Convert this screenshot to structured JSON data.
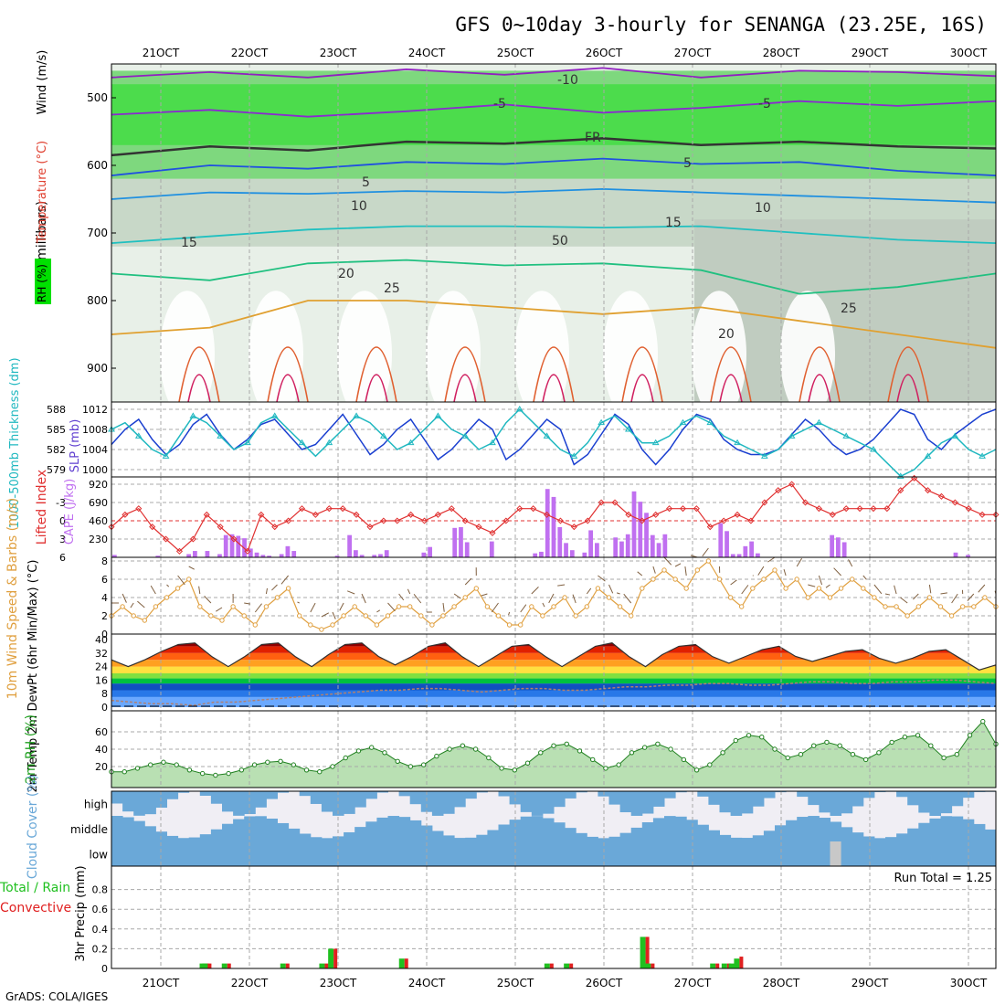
{
  "header": {
    "title": "GFS 0~10day 3-hourly for SENANGA (23.25E, 16S)",
    "credit": "GrADS: COLA/IGES"
  },
  "colors": {
    "grid": "#a8a8a8",
    "rh_green": "#00e000",
    "slp": "#1a3fd0",
    "thickness": "#20b8c0",
    "lifted_index": "#e03030",
    "cape": "#c070f0",
    "wind_speed": "#e0a040",
    "dewpoint": "#7060c0",
    "cloud": "#6aa8d8",
    "rain": "#e02020",
    "total_precip": "#20c020"
  },
  "chart_data": [
    {
      "panel": "upper-air",
      "type": "heatmap",
      "ylabel": "(millibars)",
      "side_labels": [
        "RH (%)",
        "Temperature (°C)",
        "Wind (m/s)"
      ],
      "y_ticks": [
        "500",
        "600",
        "700",
        "800",
        "900"
      ],
      "ylim": [
        450,
        950
      ],
      "x_ticks": [
        "21OCT",
        "22OCT",
        "23OCT",
        "24OCT",
        "25OCT",
        "26OCT",
        "27OCT",
        "28OCT",
        "29OCT",
        "30OCT"
      ],
      "isotherm_labels": [
        "-10",
        "-5",
        "-5",
        "FR",
        "5",
        "5",
        "10",
        "10",
        "15",
        "15",
        "20",
        "20",
        "25",
        "25",
        "50"
      ],
      "isotherms": [
        {
          "name": "-10",
          "color": "#9020c0",
          "values": [
            470,
            462,
            470,
            458,
            466,
            456,
            470,
            460,
            462,
            468
          ]
        },
        {
          "name": "-5",
          "color": "#8a2ad0",
          "values": [
            525,
            518,
            528,
            520,
            510,
            522,
            515,
            505,
            512,
            505
          ]
        },
        {
          "name": "FR",
          "color": "#333333",
          "values": [
            585,
            572,
            578,
            565,
            568,
            560,
            570,
            565,
            572,
            575
          ]
        },
        {
          "name": "5",
          "color": "#2050e0",
          "values": [
            615,
            600,
            605,
            595,
            598,
            590,
            598,
            595,
            608,
            615
          ]
        },
        {
          "name": "10",
          "color": "#2090e0",
          "values": [
            650,
            640,
            642,
            638,
            640,
            635,
            640,
            645,
            650,
            655
          ]
        },
        {
          "name": "15",
          "color": "#20c0c0",
          "values": [
            715,
            705,
            695,
            690,
            690,
            692,
            690,
            700,
            710,
            715
          ]
        },
        {
          "name": "20",
          "color": "#20c080",
          "values": [
            760,
            770,
            745,
            740,
            748,
            745,
            755,
            790,
            780,
            760
          ]
        },
        {
          "name": "25",
          "color": "#e0a030",
          "values": [
            850,
            840,
            800,
            800,
            810,
            820,
            810,
            830,
            850,
            870
          ]
        }
      ]
    },
    {
      "panel": "slp-thickness",
      "type": "line",
      "ylabel_left": "1000-500mb Thickness (dm)",
      "ylabel_right": "SLP (mb)",
      "y_ticks_left": [
        "588",
        "585",
        "582",
        "579"
      ],
      "y_ticks_right": [
        "1012",
        "1008",
        "1004",
        "1000"
      ],
      "series": [
        {
          "name": "SLP (mb)",
          "axis": "right",
          "values": [
            1005,
            1008,
            1010,
            1006,
            1003,
            1005,
            1009,
            1011,
            1007,
            1004,
            1006,
            1009,
            1010,
            1007,
            1004,
            1005,
            1008,
            1011,
            1007,
            1003,
            1005,
            1008,
            1010,
            1006,
            1002,
            1004,
            1007,
            1010,
            1008,
            1002,
            1004,
            1007,
            1010,
            1008,
            1001,
            1003,
            1007,
            1011,
            1009,
            1004,
            1001,
            1004,
            1008,
            1011,
            1010,
            1006,
            1004,
            1003,
            1003,
            1004,
            1007,
            1010,
            1008,
            1005,
            1003,
            1004,
            1006,
            1009,
            1012,
            1011,
            1006,
            1004,
            1007,
            1009,
            1011,
            1012
          ]
        },
        {
          "name": "1000-500mb Thickness (dm)",
          "axis": "left",
          "values": [
            585,
            586,
            584,
            582,
            581,
            584,
            587,
            586,
            584,
            582,
            583,
            586,
            587,
            585,
            583,
            581,
            583,
            585,
            587,
            586,
            584,
            582,
            583,
            585,
            587,
            585,
            584,
            582,
            583,
            586,
            588,
            586,
            584,
            582,
            581,
            583,
            586,
            587,
            585,
            583,
            583,
            584,
            586,
            587,
            586,
            584,
            583,
            582,
            581,
            582,
            584,
            585,
            586,
            585,
            584,
            583,
            582,
            580,
            578,
            579,
            581,
            583,
            584,
            582,
            581,
            582
          ]
        }
      ]
    },
    {
      "panel": "li-cape",
      "type": "bar",
      "ylabel_left": "Lifted Index",
      "ylabel_right": "CAPE (J/kg)",
      "y_ticks_li": [
        "-3",
        "0",
        "3",
        "6"
      ],
      "y_ticks_cape": [
        "920",
        "690",
        "460",
        "230"
      ],
      "series": [
        {
          "name": "CAPE (J/kg)",
          "values": [
            30,
            0,
            0,
            0,
            0,
            0,
            0,
            20,
            0,
            0,
            0,
            0,
            40,
            80,
            0,
            80,
            0,
            40,
            280,
            290,
            270,
            240,
            110,
            60,
            30,
            20,
            0,
            40,
            140,
            80,
            0,
            0,
            0,
            0,
            0,
            0,
            20,
            0,
            280,
            90,
            30,
            0,
            30,
            40,
            90,
            0,
            0,
            0,
            0,
            0,
            60,
            130,
            0,
            0,
            0,
            370,
            380,
            190,
            0,
            0,
            0,
            200,
            0,
            0,
            0,
            0,
            0,
            0,
            50,
            70,
            860,
            760,
            380,
            180,
            90,
            0,
            60,
            340,
            180,
            0,
            0,
            250,
            200,
            290,
            830,
            700,
            560,
            280,
            180,
            290,
            0,
            0,
            0,
            0,
            0,
            0,
            0,
            0,
            430,
            330,
            40,
            40,
            140,
            200,
            50,
            0,
            0,
            0,
            0,
            0,
            0,
            0,
            0,
            0,
            0,
            0,
            280,
            250,
            190,
            0,
            0,
            0,
            0,
            0,
            0,
            0,
            0,
            0,
            0,
            0,
            0,
            0,
            0,
            0,
            0,
            0,
            60,
            0,
            30,
            0,
            0,
            0,
            0
          ]
        },
        {
          "name": "Lifted Index",
          "values": [
            1,
            -1,
            -2,
            1,
            3,
            5,
            3,
            -1,
            1,
            3,
            5,
            -1,
            1,
            0,
            -2,
            -1,
            -2,
            -2,
            -1,
            1,
            0,
            0,
            -1,
            0,
            -1,
            -2,
            0,
            1,
            2,
            0,
            -2,
            -2,
            -1,
            0,
            1,
            0,
            -3,
            -3,
            -1,
            0,
            -1,
            -2,
            -2,
            -2,
            1,
            0,
            -1,
            0,
            -3,
            -5,
            -6,
            -3,
            -2,
            -1,
            -2,
            -2,
            -2,
            -2,
            -5,
            -7,
            -5,
            -4,
            -3,
            -2,
            -1,
            -1
          ]
        }
      ]
    },
    {
      "panel": "wind10m",
      "type": "line",
      "ylabel": "10m Wind Speed & Barbs (m/s)",
      "y_ticks": [
        "8",
        "6",
        "4",
        "2",
        "0"
      ],
      "ylim": [
        0,
        8
      ],
      "series": [
        {
          "name": "10m Wind Speed",
          "values": [
            2,
            3,
            2,
            1.5,
            3,
            4,
            5,
            6,
            3,
            2,
            1.5,
            3,
            2,
            1,
            3,
            4,
            5,
            2,
            1,
            0.5,
            1,
            2,
            3,
            2,
            1,
            2,
            3,
            3,
            2,
            1,
            2,
            3,
            4,
            5,
            3,
            2,
            1,
            1,
            3,
            2,
            3,
            4,
            2,
            3,
            5,
            4,
            3,
            2,
            5,
            6,
            7,
            6,
            5,
            7,
            8,
            6,
            4,
            3,
            5,
            6,
            7,
            5,
            6,
            4,
            5,
            4,
            5,
            6,
            5,
            4,
            3,
            3,
            2,
            3,
            4,
            3,
            2,
            3,
            3,
            4,
            3
          ]
        }
      ]
    },
    {
      "panel": "temp2m",
      "type": "area",
      "ylabel": "2m Temp 2m DewPt (6hr Min/Max) (°C)",
      "y_ticks": [
        "40",
        "32",
        "24",
        "16",
        "8",
        "0"
      ],
      "ylim": [
        0,
        40
      ],
      "series": [
        {
          "name": "2m Temp",
          "values": [
            28,
            24,
            28,
            33,
            37,
            38,
            30,
            24,
            30,
            37,
            38,
            30,
            24,
            31,
            37,
            38,
            30,
            25,
            30,
            36,
            38,
            30,
            24,
            30,
            36,
            37,
            30,
            24,
            30,
            36,
            38,
            30,
            24,
            31,
            36,
            37,
            30,
            26,
            30,
            34,
            36,
            30,
            27,
            30,
            33,
            34,
            29,
            26,
            29,
            33,
            34,
            28,
            22,
            25
          ]
        },
        {
          "name": "2m DewPt",
          "values": [
            4,
            3,
            2,
            2,
            1,
            3,
            3,
            4,
            5,
            6,
            7,
            8,
            9,
            10,
            10,
            11,
            11,
            10,
            9,
            10,
            11,
            11,
            10,
            10,
            11,
            12,
            12,
            13,
            13,
            14,
            14,
            13,
            13,
            14,
            15,
            15,
            14,
            14,
            15,
            15,
            16,
            16,
            15,
            14
          ]
        }
      ]
    },
    {
      "panel": "rh2m",
      "type": "area",
      "ylabel": "2m RH (%)",
      "y_ticks": [
        "60",
        "40",
        "20"
      ],
      "ylim": [
        0,
        80
      ],
      "series": [
        {
          "name": "2m RH",
          "values": [
            14,
            14,
            18,
            22,
            25,
            22,
            16,
            12,
            10,
            12,
            16,
            22,
            25,
            26,
            22,
            16,
            14,
            20,
            30,
            38,
            42,
            36,
            26,
            20,
            22,
            32,
            40,
            44,
            40,
            30,
            18,
            16,
            24,
            36,
            44,
            46,
            38,
            28,
            18,
            22,
            36,
            42,
            46,
            40,
            28,
            16,
            22,
            36,
            50,
            56,
            54,
            40,
            30,
            34,
            44,
            48,
            44,
            34,
            28,
            36,
            48,
            54,
            56,
            44,
            30,
            34,
            56,
            72,
            46
          ]
        }
      ]
    },
    {
      "panel": "cloud",
      "type": "bar",
      "ylabel": "Cloud Cover (%)",
      "categories": [
        "high",
        "middle",
        "low"
      ]
    },
    {
      "panel": "precip",
      "type": "bar",
      "ylabel": "3hr Precip (mm)",
      "side_labels": [
        "Total / Rain",
        "Convective"
      ],
      "y_ticks": [
        "0.8",
        "0.6",
        "0.4",
        "0.2",
        "0"
      ],
      "ylim": [
        0,
        1
      ],
      "run_total_label": "Run Total = 1.25",
      "series": [
        {
          "name": "Total",
          "values": [
            [
              26.7,
              0.05
            ],
            [
              27.0,
              0.05
            ],
            [
              29.2,
              0.05
            ],
            [
              35.8,
              0.05
            ],
            [
              40.2,
              0.05
            ],
            [
              41.2,
              0.2
            ],
            [
              49.2,
              0.1
            ],
            [
              65.6,
              0.05
            ],
            [
              67.8,
              0.05
            ],
            [
              76.4,
              0.32
            ],
            [
              77.0,
              0.05
            ],
            [
              84.3,
              0.05
            ],
            [
              85.6,
              0.05
            ],
            [
              86.4,
              0.05
            ],
            [
              87.0,
              0.1
            ]
          ]
        },
        {
          "name": "Convective",
          "values": [
            [
              26.7,
              0.05
            ],
            [
              27.0,
              0.05
            ],
            [
              29.2,
              0.05
            ],
            [
              35.8,
              0.05
            ],
            [
              40.2,
              0.05
            ],
            [
              41.2,
              0.2
            ],
            [
              49.2,
              0.1
            ],
            [
              65.6,
              0.05
            ],
            [
              67.8,
              0.05
            ],
            [
              76.4,
              0.32
            ],
            [
              77.0,
              0.05
            ],
            [
              84.3,
              0.05
            ],
            [
              85.6,
              0.05
            ],
            [
              86.4,
              0.05
            ],
            [
              87.0,
              0.12
            ]
          ]
        }
      ]
    }
  ]
}
